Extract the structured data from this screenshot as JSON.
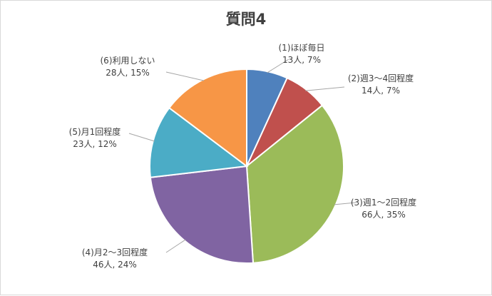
{
  "chart_data": {
    "type": "pie",
    "title": "質問4",
    "slices": [
      {
        "category": "(1)ほぼ毎日",
        "count_label": "13人, 7%",
        "value": 13,
        "percent": 7,
        "color": "#4F81BD"
      },
      {
        "category": "(2)週3～4回程度",
        "count_label": "14人, 7%",
        "value": 14,
        "percent": 7,
        "color": "#C0504D"
      },
      {
        "category": "(3)週1～2回程度",
        "count_label": "66人, 35%",
        "value": 66,
        "percent": 35,
        "color": "#9BBB59"
      },
      {
        "category": "(4)月2～3回程度",
        "count_label": "46人, 24%",
        "value": 46,
        "percent": 24,
        "color": "#8064A2"
      },
      {
        "category": "(5)月1回程度",
        "count_label": "23人, 12%",
        "value": 23,
        "percent": 12,
        "color": "#4BACC6"
      },
      {
        "category": "(6)利用しない",
        "count_label": "28人, 15%",
        "value": 28,
        "percent": 15,
        "color": "#F79646"
      }
    ],
    "legend": "none",
    "data_labels": "outside"
  }
}
